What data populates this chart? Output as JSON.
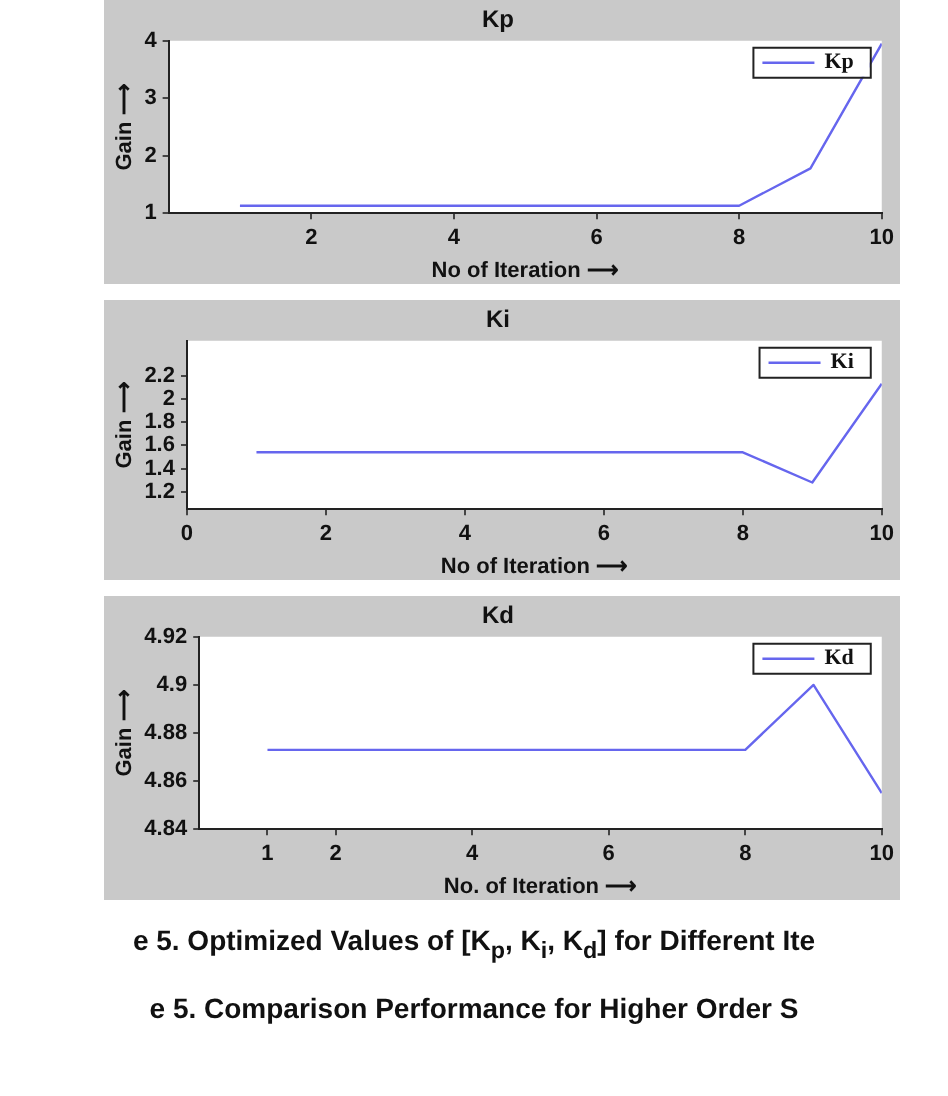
{
  "chart_data": [
    {
      "type": "line",
      "title": "Kp",
      "xlabel": "No of Iteration ⟶",
      "ylabel": "Gain ⟶",
      "x": [
        1,
        2,
        3,
        4,
        5,
        6,
        7,
        8,
        9,
        10
      ],
      "series": [
        {
          "name": "Kp",
          "color": "#6666ee",
          "values": [
            1.13,
            1.13,
            1.13,
            1.13,
            1.13,
            1.13,
            1.13,
            1.13,
            1.78,
            3.95
          ]
        }
      ],
      "xlim": [
        0,
        10
      ],
      "xticks": [
        2,
        4,
        6,
        8,
        10
      ],
      "ylim": [
        1,
        4
      ],
      "yticks": [
        1,
        2,
        3,
        4
      ],
      "grid": false,
      "legend": "top right",
      "marker": "none",
      "line_style": "solid"
    },
    {
      "type": "line",
      "title": "Ki",
      "xlabel": "No of Iteration ⟶",
      "ylabel": "Gain ⟶",
      "x": [
        1,
        2,
        3,
        4,
        5,
        6,
        7,
        8,
        9,
        10
      ],
      "series": [
        {
          "name": "Ki",
          "color": "#6666ee",
          "values": [
            1.54,
            1.54,
            1.54,
            1.54,
            1.54,
            1.54,
            1.54,
            1.54,
            1.28,
            2.13
          ]
        }
      ],
      "xlim": [
        0,
        10
      ],
      "xticks": [
        0,
        2,
        4,
        6,
        8,
        10
      ],
      "ylim": [
        1.05,
        2.5
      ],
      "yticks": [
        1.2,
        1.4,
        1.6,
        1.8,
        2,
        2.2
      ],
      "grid": false,
      "legend": "top right",
      "marker": "none",
      "line_style": "solid"
    },
    {
      "type": "line",
      "title": "Kd",
      "xlabel": "No. of Iteration ⟶",
      "ylabel": "Gain ⟶",
      "x": [
        1,
        2,
        3,
        4,
        5,
        6,
        7,
        8,
        9,
        10
      ],
      "series": [
        {
          "name": "Kd",
          "color": "#6666ee",
          "values": [
            4.873,
            4.873,
            4.873,
            4.873,
            4.873,
            4.873,
            4.873,
            4.873,
            4.9,
            4.855
          ]
        }
      ],
      "xlim": [
        0,
        10
      ],
      "xticks": [
        1,
        2,
        4,
        6,
        8,
        10
      ],
      "ylim": [
        4.84,
        4.92
      ],
      "yticks": [
        4.84,
        4.86,
        4.88,
        4.9,
        4.92
      ],
      "grid": false,
      "legend": "top right",
      "marker": "none",
      "line_style": "solid",
      "annotations": [
        "e 5. Optimized Values of [K$_{p}$, K$_{i}$, K$_{d}$] for Different Ite",
        "e 5.  Comparison Performance for Higher Order S"
      ]
    }
  ]
}
